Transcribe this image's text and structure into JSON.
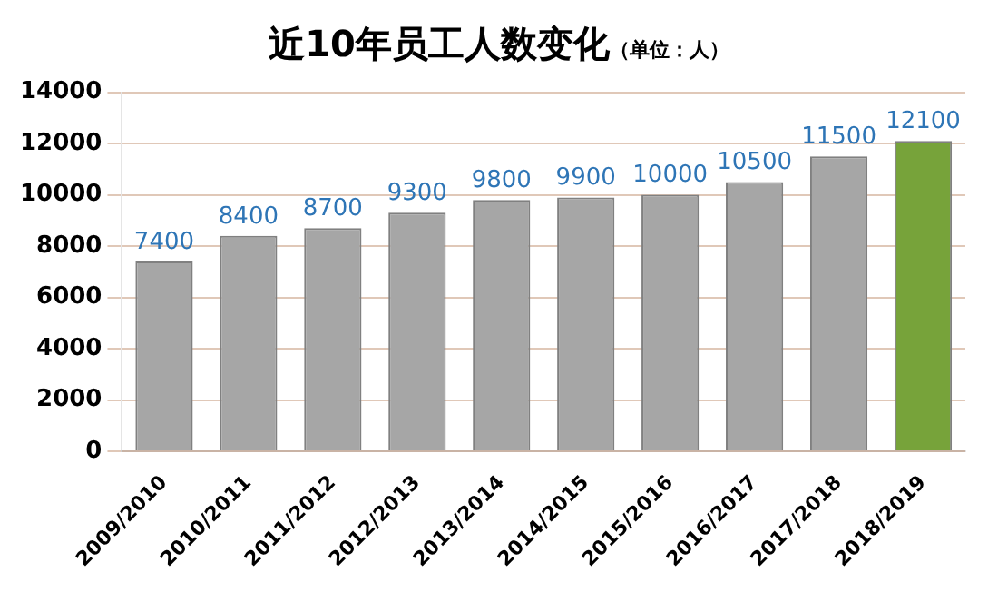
{
  "chart_data": {
    "type": "bar",
    "title": "近10年员工人数变化",
    "subtitle": "（单位：人）",
    "categories": [
      "2009/2010",
      "2010/2011",
      "2011/2012",
      "2012/2013",
      "2013/2014",
      "2014/2015",
      "2015/2016",
      "2016/2017",
      "2017/2018",
      "2018/2019"
    ],
    "values": [
      7400,
      8400,
      8700,
      9300,
      9800,
      9900,
      10000,
      10500,
      11500,
      12100
    ],
    "colors": [
      "#a6a6a6",
      "#a6a6a6",
      "#a6a6a6",
      "#a6a6a6",
      "#a6a6a6",
      "#a6a6a6",
      "#a6a6a6",
      "#a6a6a6",
      "#a6a6a6",
      "#77a33a"
    ],
    "ylim": [
      0,
      14000
    ],
    "yticks": [
      0,
      2000,
      4000,
      6000,
      8000,
      10000,
      12000,
      14000
    ],
    "grid": "y",
    "data_labels": true
  }
}
